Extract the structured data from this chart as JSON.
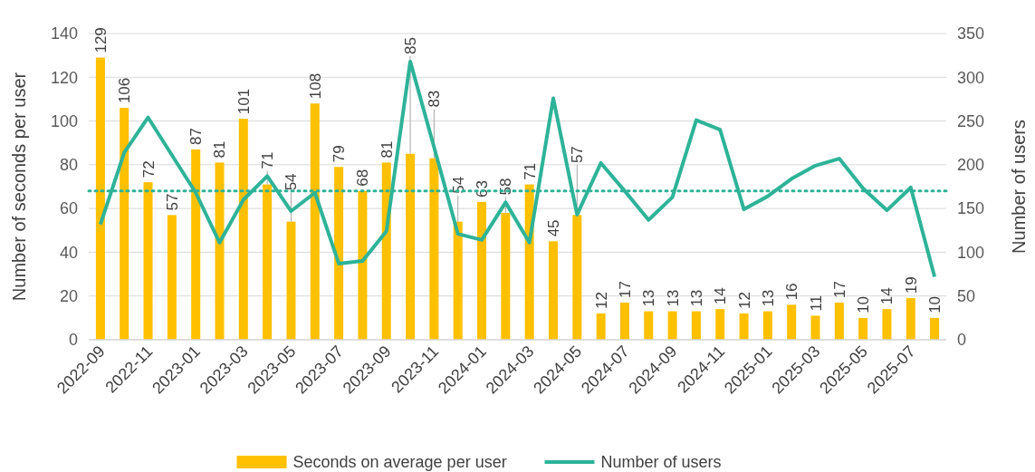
{
  "chart_data": {
    "type": "bar",
    "categories": [
      "2022-09",
      null,
      "2022-11",
      null,
      "2023-01",
      null,
      "2023-03",
      null,
      "2023-05",
      null,
      "2023-07",
      null,
      "2023-09",
      null,
      "2023-11",
      null,
      "2024-01",
      null,
      "2024-03",
      null,
      "2024-05",
      null,
      "2024-07",
      null,
      "2024-09",
      null,
      "2024-11",
      null,
      "2025-01",
      null,
      "2025-03",
      null,
      "2025-05",
      null,
      "2025-07",
      null
    ],
    "ylabel": "Number of seconds per user",
    "y2label": "Number of users",
    "ylim": [
      0,
      140
    ],
    "yticks": [
      0,
      20,
      40,
      60,
      80,
      100,
      120,
      140
    ],
    "y2lim": [
      0,
      350
    ],
    "y2ticks": [
      0,
      50,
      100,
      150,
      200,
      250,
      300,
      350
    ],
    "grid": "y",
    "legend": "bottom",
    "series": [
      {
        "name": "Seconds on average per user",
        "color": "#ffc000",
        "values": [
          129,
          106,
          72,
          57,
          87,
          81,
          101,
          71,
          54,
          108,
          79,
          68,
          81,
          85,
          83,
          54,
          63,
          58,
          71,
          45,
          57,
          12,
          17,
          13,
          13,
          13,
          14,
          12,
          13,
          16,
          11,
          17,
          10,
          14,
          19,
          10
        ],
        "value_labels": [
          "129",
          "106",
          "72",
          "57",
          "87",
          "81",
          "101",
          "71",
          "54",
          "108",
          "79",
          "68",
          "81",
          "85",
          "83",
          "54",
          "63",
          "58",
          "71",
          "45",
          "57",
          "12",
          "17",
          "13",
          "13",
          "13",
          "14",
          "12",
          "13",
          "16",
          "11",
          "17",
          "10",
          "14",
          "19",
          "10"
        ]
      },
      {
        "name": "Number of users",
        "type": "line",
        "axis": "y2",
        "color": "#2eb398",
        "values": [
          132,
          214,
          254,
          211,
          168,
          111,
          160,
          187,
          147,
          168,
          87,
          90,
          124,
          318,
          220,
          121,
          114,
          157,
          111,
          276,
          143,
          202,
          170,
          137,
          163,
          251,
          240,
          149,
          164,
          184,
          199,
          207,
          173,
          148,
          174,
          72
        ]
      }
    ],
    "ref_lines": [
      {
        "axis": "y2",
        "value": 170,
        "color": "#2eb398",
        "line_style": "dotted"
      }
    ]
  }
}
